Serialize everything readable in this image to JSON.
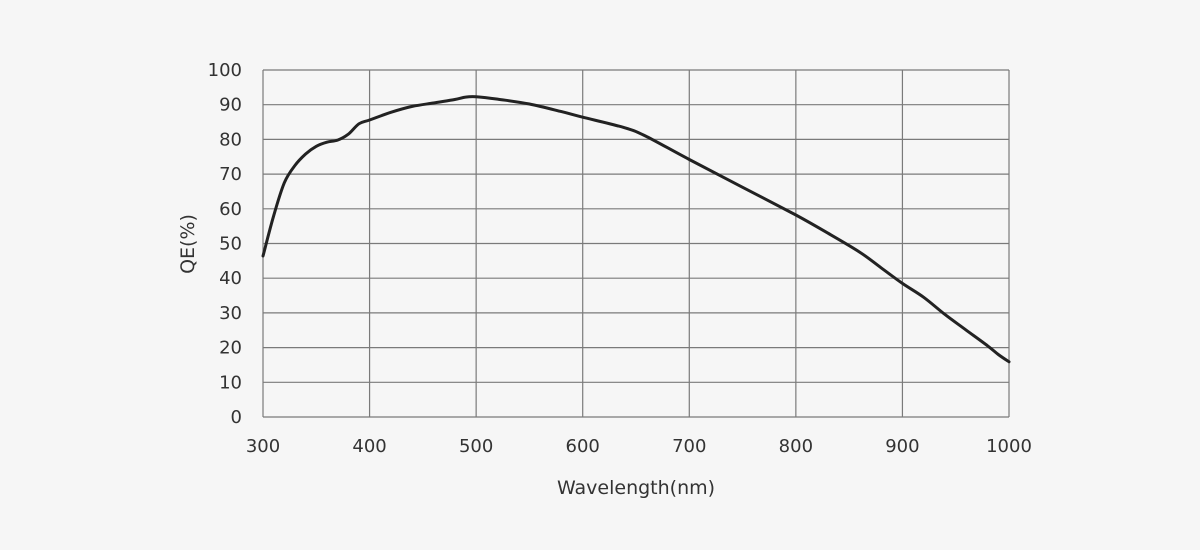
{
  "chart_data": {
    "type": "line",
    "title": "",
    "xlabel": "Wavelength(nm)",
    "ylabel": "QE(%)",
    "xlim": [
      300,
      1000
    ],
    "ylim": [
      0,
      100
    ],
    "grid": true,
    "legend": null,
    "x_ticks": [
      300,
      400,
      500,
      600,
      700,
      800,
      900,
      1000
    ],
    "y_ticks": [
      0,
      10,
      20,
      30,
      40,
      50,
      60,
      70,
      80,
      90,
      100
    ],
    "series": [
      {
        "name": "QE",
        "color": "#222222",
        "x": [
          300,
          310,
          320,
          330,
          340,
          350,
          360,
          370,
          380,
          390,
          400,
          420,
          440,
          460,
          480,
          490,
          500,
          520,
          550,
          580,
          600,
          640,
          660,
          700,
          750,
          800,
          830,
          860,
          880,
          900,
          920,
          940,
          960,
          980,
          990,
          1000
        ],
        "values": [
          46.4,
          58,
          67.5,
          72.5,
          75.8,
          78,
          79.2,
          79.8,
          81.5,
          84.5,
          85.6,
          87.8,
          89.5,
          90.5,
          91.5,
          92.2,
          92.3,
          91.6,
          90.2,
          88,
          86.4,
          83.3,
          80.8,
          74.2,
          66.2,
          58.2,
          53,
          47.5,
          43,
          38.5,
          34.5,
          29.5,
          25,
          20.5,
          18,
          15.9
        ]
      }
    ]
  }
}
